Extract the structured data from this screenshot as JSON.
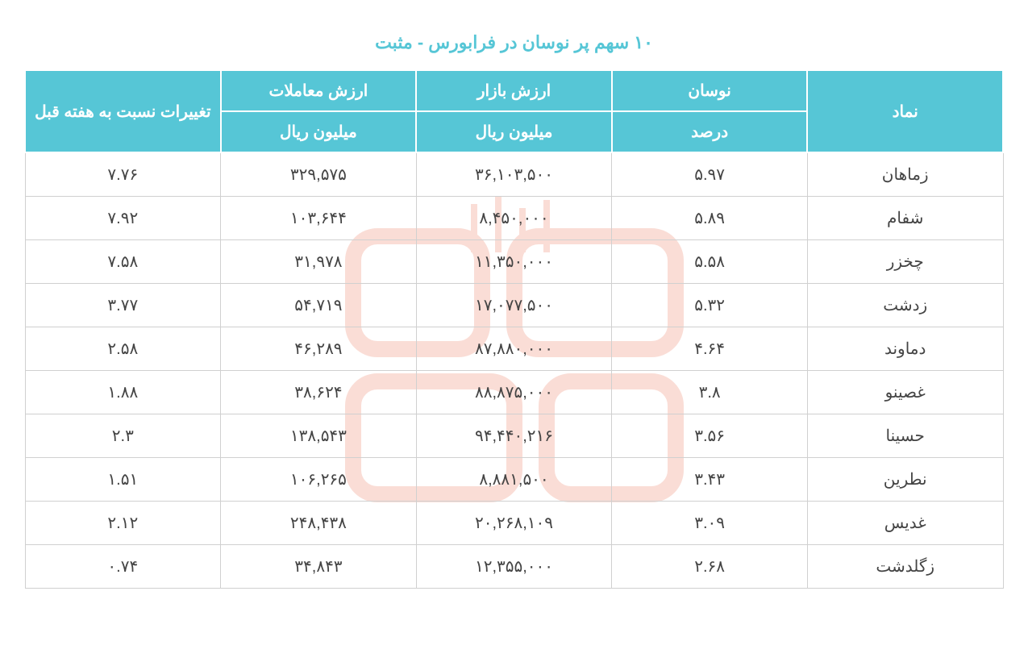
{
  "title": "۱۰ سهم پر نوسان در فرابورس - مثبت",
  "title_color": "#56c6d6",
  "header_bg": "#56c6d6",
  "header_fg": "#ffffff",
  "border_color": "#d0d0d0",
  "cell_color": "#444444",
  "watermark_color": "#e96a4a",
  "columns": {
    "symbol": "نماد",
    "fluct_top": "نوسان",
    "fluct_sub": "درصد",
    "mktval_top": "ارزش بازار",
    "mktval_sub": "میلیون ریال",
    "tradeval_top": "ارزش معاملات",
    "tradeval_sub": "میلیون ریال",
    "change": "تغییرات نسبت به هفته قبل"
  },
  "rows": [
    {
      "symbol": "زماهان",
      "fluct": "۵.۹۷",
      "mktval": "۳۶,۱۰۳,۵۰۰",
      "tradeval": "۳۲۹,۵۷۵",
      "change": "۷.۷۶"
    },
    {
      "symbol": "شفام",
      "fluct": "۵.۸۹",
      "mktval": "۸,۴۵۰,۰۰۰",
      "tradeval": "۱۰۳,۶۴۴",
      "change": "۷.۹۲"
    },
    {
      "symbol": "چخزر",
      "fluct": "۵.۵۸",
      "mktval": "۱۱,۳۵۰,۰۰۰",
      "tradeval": "۳۱,۹۷۸",
      "change": "۷.۵۸"
    },
    {
      "symbol": "زدشت",
      "fluct": "۵.۳۲",
      "mktval": "۱۷,۰۷۷,۵۰۰",
      "tradeval": "۵۴,۷۱۹",
      "change": "۳.۷۷"
    },
    {
      "symbol": "دماوند",
      "fluct": "۴.۶۴",
      "mktval": "۸۷,۸۸۰,۰۰۰",
      "tradeval": "۴۶,۲۸۹",
      "change": "۲.۵۸"
    },
    {
      "symbol": "غصینو",
      "fluct": "۳.۸",
      "mktval": "۸۸,۸۷۵,۰۰۰",
      "tradeval": "۳۸,۶۲۴",
      "change": "۱.۸۸"
    },
    {
      "symbol": "حسینا",
      "fluct": "۳.۵۶",
      "mktval": "۹۴,۴۴۰,۲۱۶",
      "tradeval": "۱۳۸,۵۴۳",
      "change": "۲.۳"
    },
    {
      "symbol": "نطرین",
      "fluct": "۳.۴۳",
      "mktval": "۸,۸۸۱,۵۰۰",
      "tradeval": "۱۰۶,۲۶۵",
      "change": "۱.۵۱"
    },
    {
      "symbol": "غدیس",
      "fluct": "۳.۰۹",
      "mktval": "۲۰,۲۶۸,۱۰۹",
      "tradeval": "۲۴۸,۴۳۸",
      "change": "۲.۱۲"
    },
    {
      "symbol": "زگلدشت",
      "fluct": "۲.۶۸",
      "mktval": "۱۲,۳۵۵,۰۰۰",
      "tradeval": "۳۴,۸۴۳",
      "change": "۰.۷۴"
    }
  ]
}
